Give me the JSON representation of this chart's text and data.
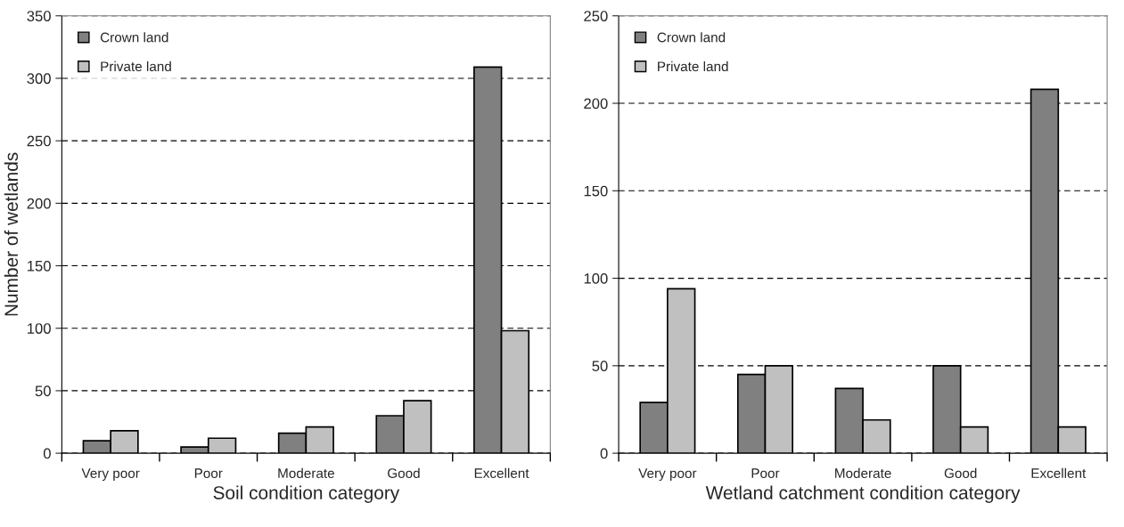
{
  "chart_data": [
    {
      "type": "bar",
      "xlabel": "Soil condition category",
      "ylabel": "Number of wetlands",
      "categories": [
        "Very poor",
        "Poor",
        "Moderate",
        "Good",
        "Excellent"
      ],
      "series": [
        {
          "name": "Crown land",
          "color": "#808080",
          "values": [
            10,
            5,
            16,
            30,
            309
          ]
        },
        {
          "name": "Private land",
          "color": "#c0c0c0",
          "values": [
            18,
            12,
            21,
            42,
            98
          ]
        }
      ],
      "ylim": [
        0,
        350
      ],
      "yticks": [
        0,
        50,
        100,
        150,
        200,
        250,
        300,
        350
      ],
      "grid": "y",
      "legend": "top left"
    },
    {
      "type": "bar",
      "xlabel": "Wetland catchment condition category",
      "categories": [
        "Very poor",
        "Poor",
        "Moderate",
        "Good",
        "Excellent"
      ],
      "series": [
        {
          "name": "Crown land",
          "color": "#808080",
          "values": [
            29,
            45,
            37,
            50,
            208
          ]
        },
        {
          "name": "Private land",
          "color": "#c0c0c0",
          "values": [
            94,
            50,
            19,
            15,
            15
          ]
        }
      ],
      "ylim": [
        0,
        250
      ],
      "yticks": [
        0,
        50,
        100,
        150,
        200,
        250
      ],
      "grid": "y",
      "legend": "top left"
    }
  ]
}
